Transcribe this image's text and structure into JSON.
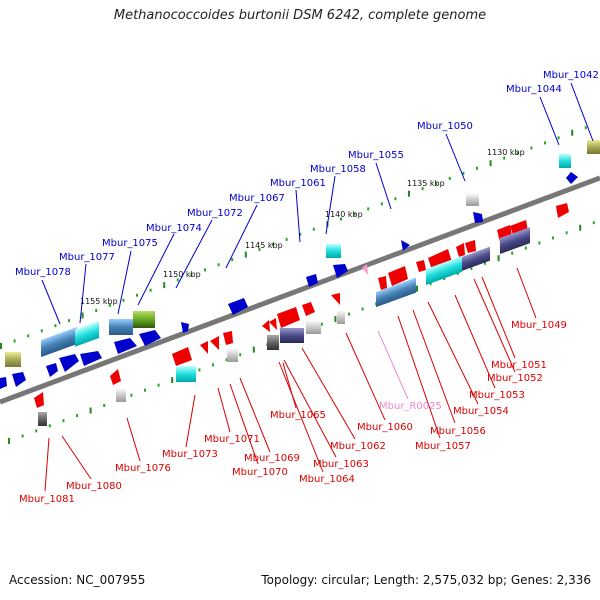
{
  "title": "Methanococcoides burtonii DSM 6242, complete genome",
  "footer": {
    "accession": "Accession: NC_007955",
    "topology": "Topology: circular; Length: 2,575,032 bp; Genes: 2,336"
  },
  "colors": {
    "upper_label": "#0000cc",
    "lower_label": "#dd0000",
    "rna_label": "#ee88cc",
    "backbone": "#777777",
    "tick_major": "#228822",
    "tick_minor": "#22aa22"
  },
  "scale_labels": [
    "1130 kbp",
    "1135 kbp",
    "1140 kbp",
    "1145 kbp",
    "1150 kbp",
    "1155 kbp"
  ],
  "upper_labels": [
    "Mbur_1042",
    "Mbur_1044",
    "Mbur_1050",
    "Mbur_1055",
    "Mbur_1058",
    "Mbur_1061",
    "Mbur_1067",
    "Mbur_1072",
    "Mbur_1074",
    "Mbur_1075",
    "Mbur_1077",
    "Mbur_1078"
  ],
  "lower_labels": [
    "Mbur_1049",
    "Mbur_1051",
    "Mbur_1052",
    "Mbur_1053",
    "Mbur_1054",
    "Mbur_1056",
    "Mbur_1057",
    "Mbur_R0025",
    "Mbur_1060",
    "Mbur_1062",
    "Mbur_1063",
    "Mbur_1064",
    "Mbur_1065",
    "Mbur_1069",
    "Mbur_1070",
    "Mbur_1071",
    "Mbur_1073",
    "Mbur_1076",
    "Mbur_1080",
    "Mbur_1081"
  ]
}
